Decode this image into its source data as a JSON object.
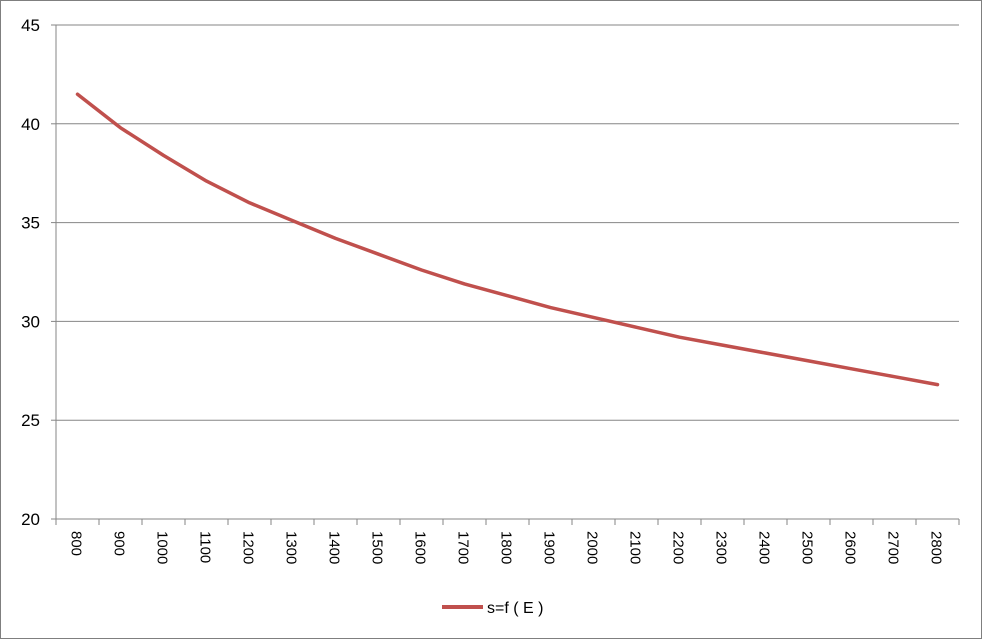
{
  "chart_data": {
    "type": "line",
    "title": "",
    "xlabel": "",
    "ylabel": "",
    "x": [
      800,
      900,
      1000,
      1100,
      1200,
      1300,
      1400,
      1500,
      1600,
      1700,
      1800,
      1900,
      2000,
      2100,
      2200,
      2300,
      2400,
      2500,
      2600,
      2700,
      2800
    ],
    "ylim": [
      20,
      45
    ],
    "yticks": [
      20,
      25,
      30,
      35,
      40,
      45
    ],
    "grid": true,
    "legend_position": "bottom",
    "series": [
      {
        "name": "s=f ( E )",
        "color": "#c0504d",
        "values": [
          41.5,
          39.8,
          38.4,
          37.1,
          36.0,
          35.1,
          34.2,
          33.4,
          32.6,
          31.9,
          31.3,
          30.7,
          30.2,
          29.7,
          29.2,
          28.8,
          28.4,
          28.0,
          27.6,
          27.2,
          26.8
        ]
      }
    ]
  }
}
